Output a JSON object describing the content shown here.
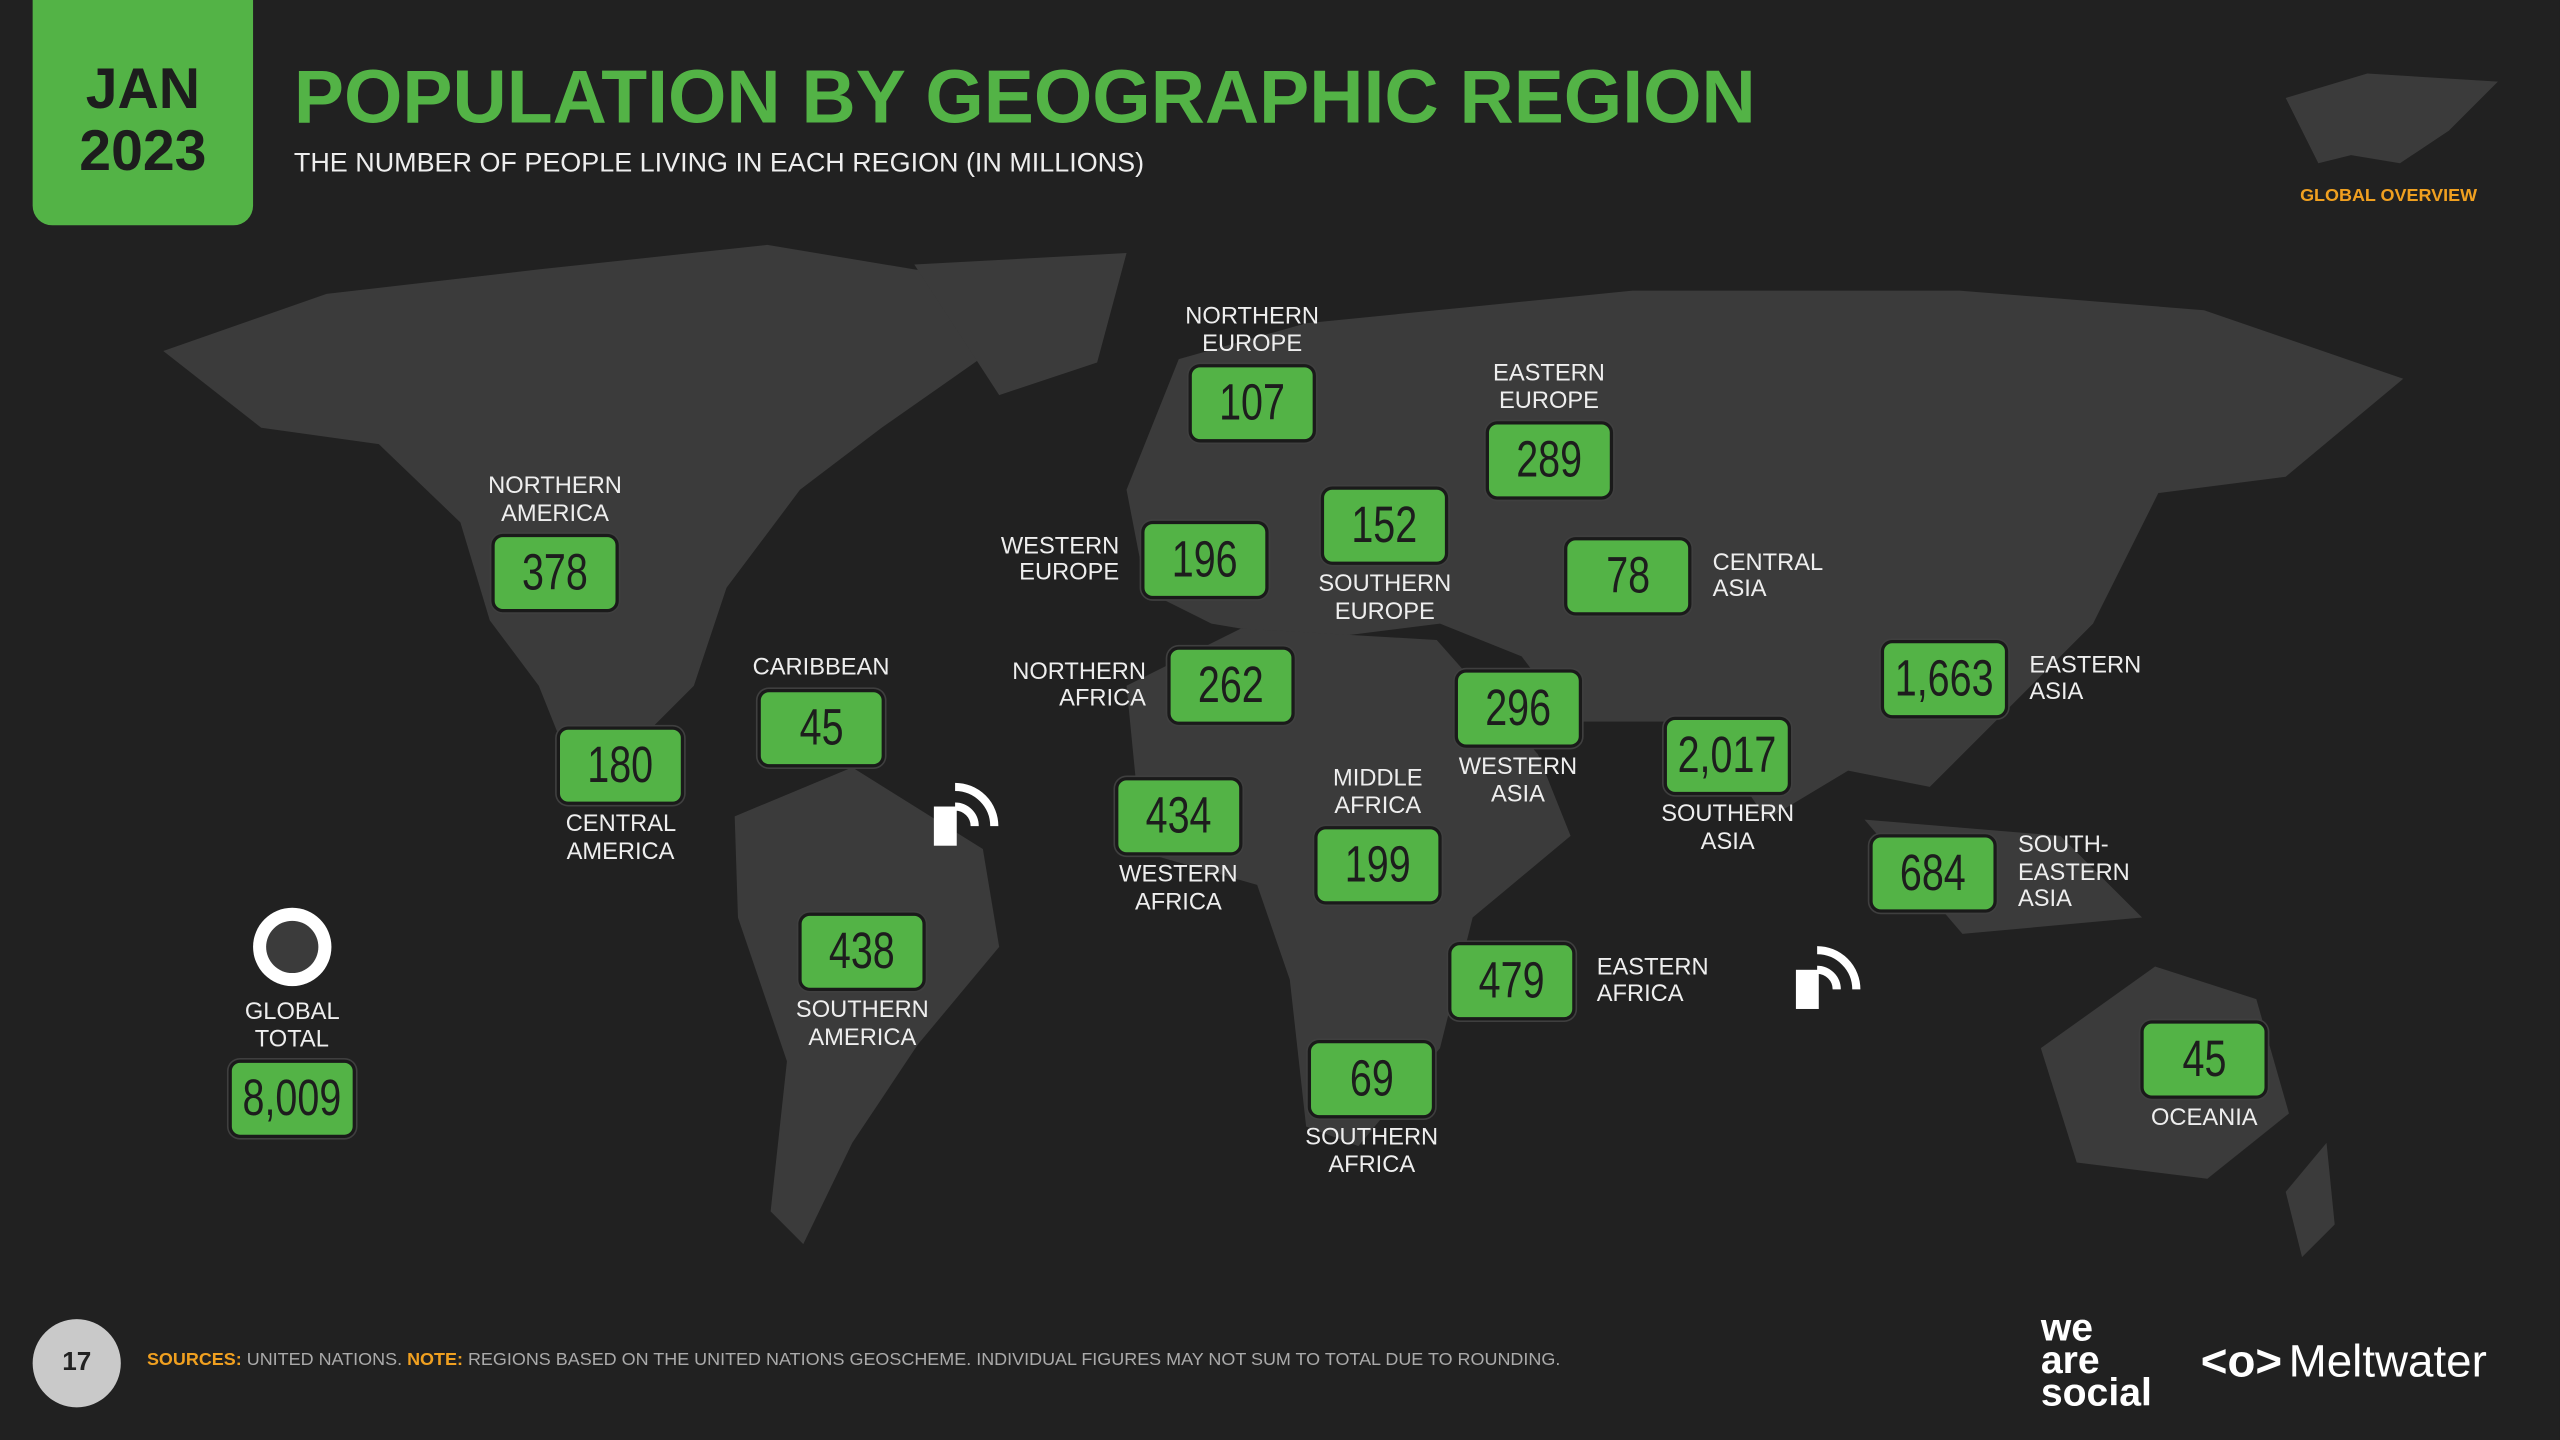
{
  "header": {
    "date_month": "JAN",
    "date_year": "2023",
    "title": "POPULATION BY GEOGRAPHIC REGION",
    "subtitle": "THE NUMBER OF PEOPLE LIVING IN EACH REGION (IN MILLIONS)",
    "section": "GLOBAL OVERVIEW"
  },
  "regions": [
    {
      "label": "NORTHERN EUROPE",
      "value": "107"
    },
    {
      "label": "EASTERN EUROPE",
      "value": "289"
    },
    {
      "label": "SOUTHERN EUROPE",
      "value": "152"
    },
    {
      "label": "WESTERN EUROPE",
      "value": "196"
    },
    {
      "label": "CENTRAL ASIA",
      "value": "78"
    },
    {
      "label": "NORTHERN AMERICA",
      "value": "378"
    },
    {
      "label": "CARIBBEAN",
      "value": "45"
    },
    {
      "label": "CENTRAL AMERICA",
      "value": "180"
    },
    {
      "label": "NORTHERN AFRICA",
      "value": "262"
    },
    {
      "label": "WESTERN ASIA",
      "value": "296"
    },
    {
      "label": "SOUTHERN ASIA",
      "value": "2,017"
    },
    {
      "label": "EASTERN ASIA",
      "value": "1,663"
    },
    {
      "label": "WESTERN AFRICA",
      "value": "434"
    },
    {
      "label": "MIDDLE AFRICA",
      "value": "199"
    },
    {
      "label": "SOUTH-EASTERN ASIA",
      "value": "684"
    },
    {
      "label": "SOUTHERN AMERICA",
      "value": "438"
    },
    {
      "label": "EASTERN AFRICA",
      "value": "479"
    },
    {
      "label": "SOUTHERN AFRICA",
      "value": "69"
    },
    {
      "label": "OCEANIA",
      "value": "45"
    }
  ],
  "global_total": {
    "label": "GLOBAL TOTAL",
    "value": "8,009"
  },
  "footer": {
    "page": "17",
    "sources_label": "SOURCES:",
    "sources_text": "UNITED NATIONS.",
    "note_label": "NOTE:",
    "note_text": "REGIONS BASED ON THE UNITED NATIONS GEOSCHEME. INDIVIDUAL FIGURES MAY NOT SUM TO TOTAL DUE TO ROUNDING.",
    "brand1": "we are social",
    "brand2": "Meltwater"
  }
}
